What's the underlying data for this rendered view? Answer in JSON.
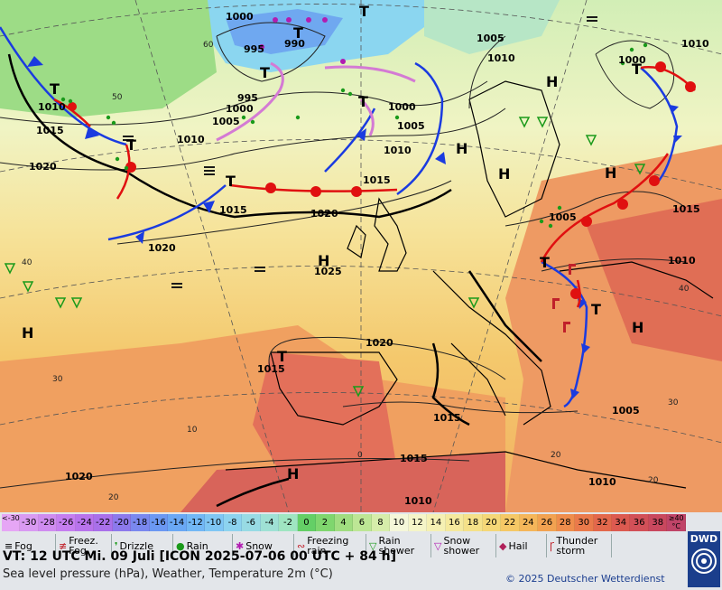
{
  "map": {
    "region": "Europe / North Atlantic",
    "highs": [
      "H",
      "H",
      "H",
      "H",
      "H",
      "H",
      "H",
      "H"
    ],
    "lows": [
      "T",
      "T",
      "T",
      "T",
      "T",
      "T",
      "T",
      "T",
      "T",
      "T",
      "T"
    ],
    "isobar_labels": [
      "1000",
      "1005",
      "1010",
      "990",
      "995",
      "1000",
      "1005",
      "1010",
      "1015",
      "1020",
      "1020",
      "1015",
      "1020",
      "1025",
      "1020",
      "1015",
      "1015",
      "1020",
      "1015",
      "1010",
      "1010",
      "1005",
      "1000",
      "1010",
      "1005",
      "1010",
      "1015",
      "1005",
      "1000",
      "995",
      "1010",
      "1015",
      "1010"
    ],
    "lat_labels": [
      "60",
      "50",
      "40",
      "30",
      "20",
      "30",
      "20",
      "40",
      "0",
      "20",
      "10"
    ]
  },
  "legend": {
    "temperature_scale": [
      {
        "label": "<-30",
        "color": "#e6a6f5"
      },
      {
        "label": "-30",
        "color": "#d99af2"
      },
      {
        "label": "-28",
        "color": "#cf8cf0"
      },
      {
        "label": "-26",
        "color": "#c57ef0"
      },
      {
        "label": "-24",
        "color": "#b873ec"
      },
      {
        "label": "-22",
        "color": "#a970ea"
      },
      {
        "label": "-20",
        "color": "#8c79ec"
      },
      {
        "label": "-18",
        "color": "#7a88ef"
      },
      {
        "label": "-16",
        "color": "#6b98f2"
      },
      {
        "label": "-14",
        "color": "#6aa8f4"
      },
      {
        "label": "-12",
        "color": "#72b7f5"
      },
      {
        "label": "-10",
        "color": "#7fc6f4"
      },
      {
        "label": "-8",
        "color": "#8dd3ef"
      },
      {
        "label": "-6",
        "color": "#98dbe4"
      },
      {
        "label": "-4",
        "color": "#9fe1d5"
      },
      {
        "label": "-2",
        "color": "#9fe5c1"
      },
      {
        "label": "0",
        "color": "#64cf66"
      },
      {
        "label": "2",
        "color": "#7fd66e"
      },
      {
        "label": "4",
        "color": "#a0dd80"
      },
      {
        "label": "6",
        "color": "#bde695"
      },
      {
        "label": "8",
        "color": "#d6edaa"
      },
      {
        "label": "10",
        "color": "#f5f7d9"
      },
      {
        "label": "12",
        "color": "#f5f5c8"
      },
      {
        "label": "14",
        "color": "#f5f0b3"
      },
      {
        "label": "16",
        "color": "#f5e99d"
      },
      {
        "label": "18",
        "color": "#f5e189"
      },
      {
        "label": "20",
        "color": "#f5d777"
      },
      {
        "label": "22",
        "color": "#f5c866"
      },
      {
        "label": "24",
        "color": "#f5b65a"
      },
      {
        "label": "26",
        "color": "#f2a251"
      },
      {
        "label": "28",
        "color": "#ef8d4c"
      },
      {
        "label": "30",
        "color": "#ea7a4b"
      },
      {
        "label": "32",
        "color": "#e3684c"
      },
      {
        "label": "34",
        "color": "#dc5a50"
      },
      {
        "label": "36",
        "color": "#d25058"
      },
      {
        "label": "38",
        "color": "#c9485e"
      },
      {
        "label": "≥40 °C",
        "color": "#c04468"
      }
    ],
    "weather_types": [
      {
        "icon": "fog-icon",
        "label": "Fog",
        "sym": "≡",
        "color": "#000000"
      },
      {
        "icon": "freezing-fog-icon",
        "label": "Freez. Fog",
        "sym": "≢",
        "color": "#c0202a"
      },
      {
        "icon": "drizzle-icon",
        "label": "Drizzle",
        "sym": "❜",
        "color": "#1a9a1a"
      },
      {
        "icon": "rain-icon",
        "label": "Rain",
        "sym": "●",
        "color": "#1a9a1a"
      },
      {
        "icon": "snow-icon",
        "label": "Snow",
        "sym": "✱",
        "color": "#b11cb1"
      },
      {
        "icon": "freezing-rain-icon",
        "label": "Freezing rain",
        "sym": "∾",
        "color": "#c0202a"
      },
      {
        "icon": "rain-shower-icon",
        "label": "Rain shower",
        "sym": "▽",
        "color": "#1a9a1a"
      },
      {
        "icon": "snow-shower-icon",
        "label": "Snow shower",
        "sym": "▽",
        "color": "#b11cb1"
      },
      {
        "icon": "hail-icon",
        "label": "Hail",
        "sym": "◆",
        "color": "#b0205a"
      },
      {
        "icon": "thunderstorm-icon",
        "label": "Thunder storm",
        "sym": "Ꞅ",
        "color": "#c0202a"
      }
    ],
    "valid_time": "VT: 12 UTC Mi.   09 Juli [ICON 2025-07-06   00 UTC + 84 h]",
    "subtitle": "Sea level pressure (hPa), Weather, Temperature 2m (°C)",
    "copyright": "© 2025 Deutscher Wetterdienst",
    "logo": "DWD"
  }
}
